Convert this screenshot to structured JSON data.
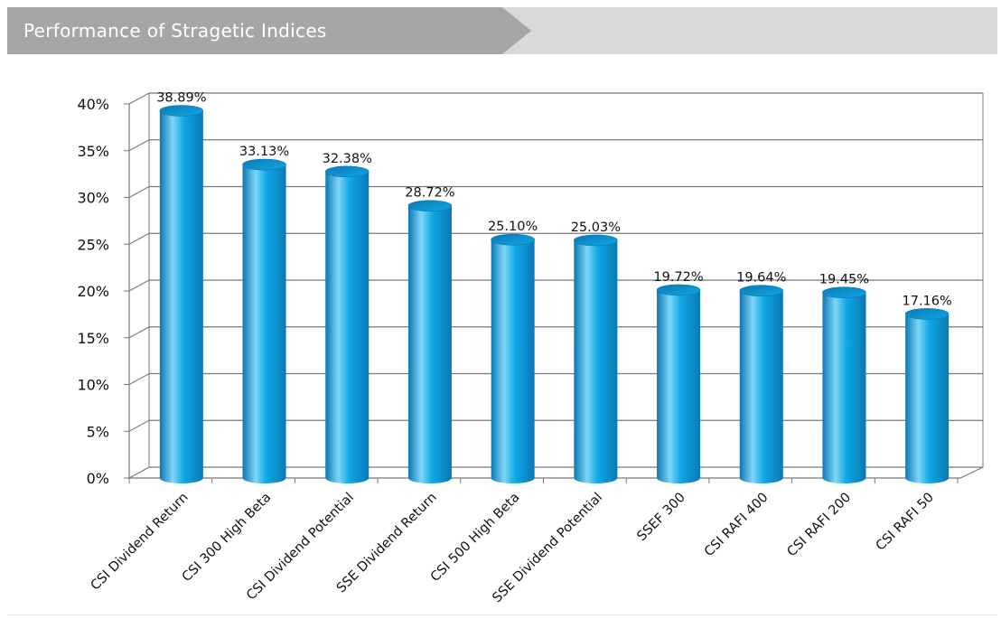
{
  "header": {
    "title": "Performance of Stragetic Indices"
  },
  "colors": {
    "bar": "#10a8e6",
    "bar_dark": "#0a78b3",
    "bar_light": "#7fd6f7",
    "grid": "#777777",
    "header_band": "#d9d9d9",
    "header_arrow": "#a6a6a6"
  },
  "chart_data": {
    "type": "bar",
    "title": "",
    "xlabel": "",
    "ylabel": "",
    "ylim": [
      0,
      40
    ],
    "yticks": [
      "0%",
      "5%",
      "10%",
      "15%",
      "20%",
      "25%",
      "30%",
      "35%",
      "40%"
    ],
    "grid": true,
    "style": "3d-cylinder",
    "categories": [
      "CSI Dividend Return",
      "CSI 300 High Beta",
      "CSI Dividend Potential",
      "SSE Dividend Return",
      "CSI 500 High Beta",
      "SSE Dividend Potential",
      "SSEF 300",
      "CSI RAFI 400",
      "CSI RAFI 200",
      "CSI RAFI 50"
    ],
    "values": [
      38.89,
      33.13,
      32.38,
      28.72,
      25.1,
      25.03,
      19.72,
      19.64,
      19.45,
      17.16
    ],
    "data_labels": [
      "38.89%",
      "33.13%",
      "32.38%",
      "28.72%",
      "25.10%",
      "25.03%",
      "19.72%",
      "19.64%",
      "19.45%",
      "17.16%"
    ]
  }
}
